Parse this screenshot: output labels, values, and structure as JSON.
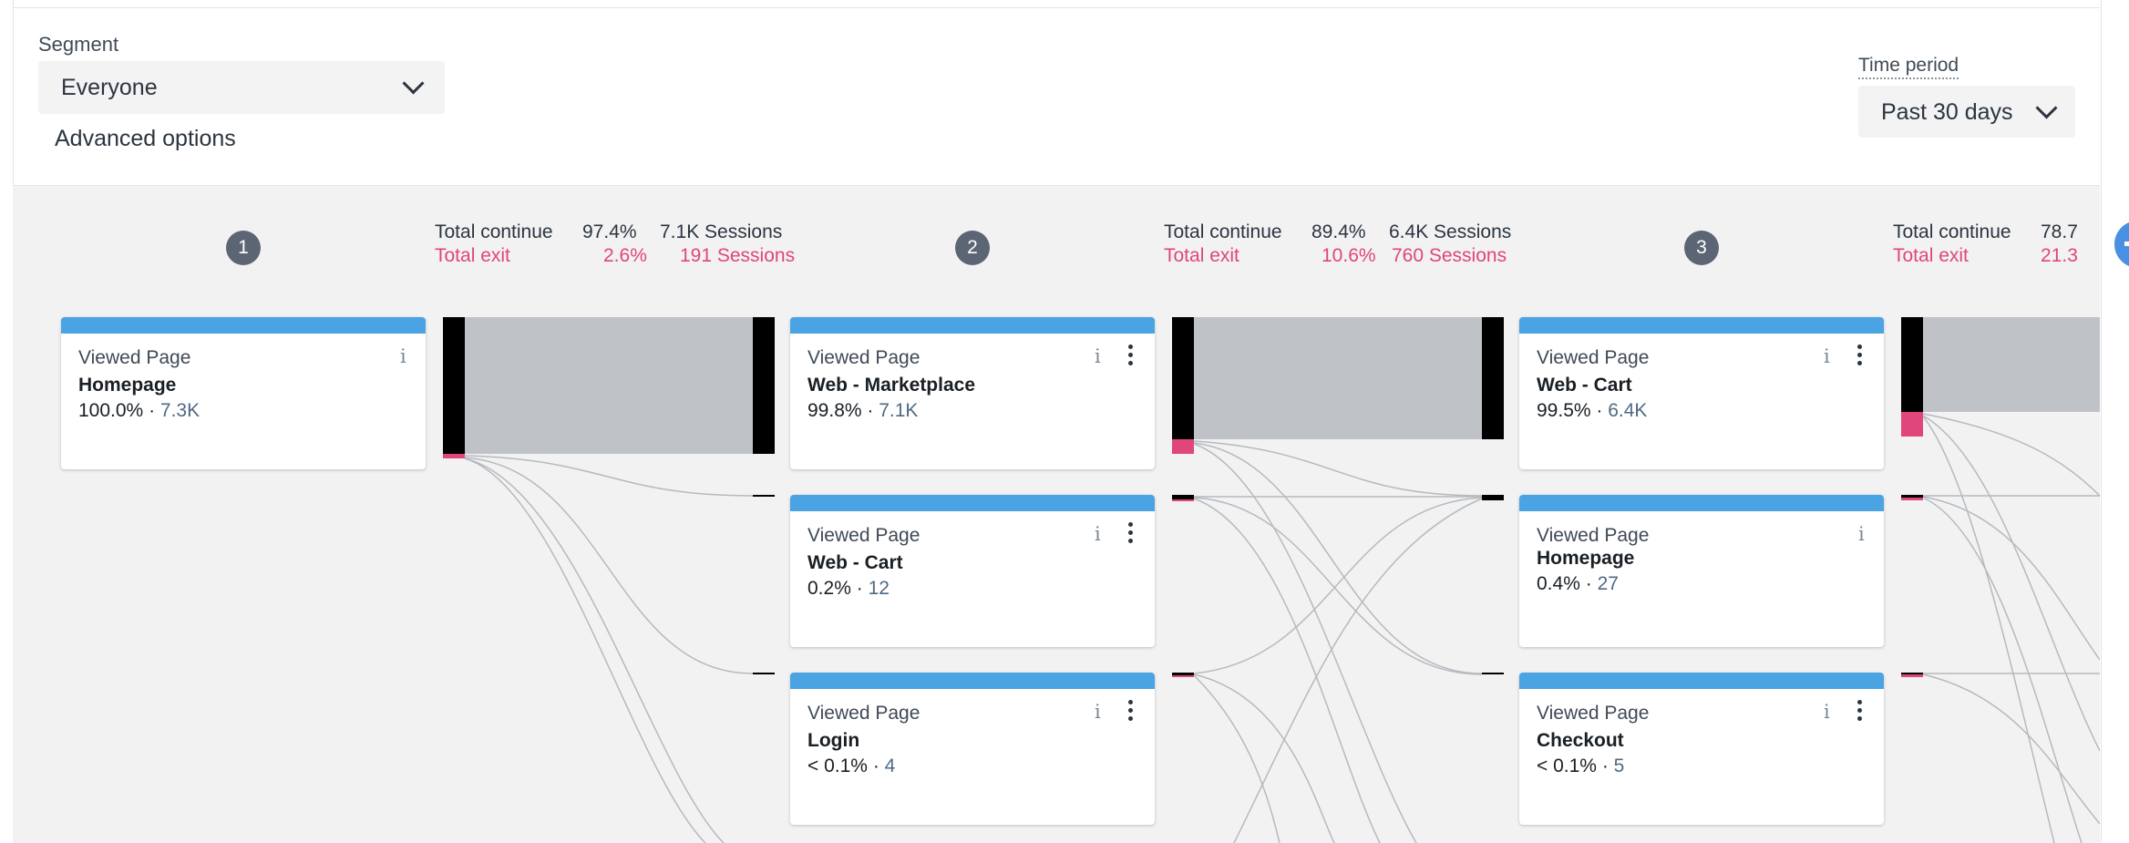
{
  "segment": {
    "label": "Segment",
    "value": "Everyone",
    "advanced": "Advanced options"
  },
  "time_period": {
    "label": "Time period",
    "value": "Past 30 days"
  },
  "steps": [
    {
      "number": "1",
      "continue_label": "Total continue",
      "continue_pct": "97.4%",
      "continue_sessions": "7.1K Sessions",
      "exit_label": "Total exit",
      "exit_pct": "2.6%",
      "exit_sessions": "191 Sessions"
    },
    {
      "number": "2",
      "continue_label": "Total continue",
      "continue_pct": "89.4%",
      "continue_sessions": "6.4K Sessions",
      "exit_label": "Total exit",
      "exit_pct": "10.6%",
      "exit_sessions": "760 Sessions"
    },
    {
      "number": "3",
      "continue_label": "Total continue",
      "continue_pct": "78.7",
      "exit_label": "Total exit",
      "exit_pct": "21.3"
    }
  ],
  "cards": [
    {
      "event": "Viewed Page",
      "name": "Homepage",
      "pct": "100.0%",
      "sep": "·",
      "count": "7.3K"
    },
    {
      "event": "Viewed Page",
      "name": "Web - Marketplace",
      "pct": "99.8%",
      "sep": "·",
      "count": "7.1K"
    },
    {
      "event": "Viewed Page",
      "name": "Web - Cart",
      "pct": "0.2%",
      "sep": "·",
      "count": "12"
    },
    {
      "event": "Viewed Page",
      "name": "Login",
      "pct": "< 0.1%",
      "sep": "·",
      "count": "4"
    },
    {
      "event": "Viewed Page",
      "name": "Web - Cart",
      "pct": "99.5%",
      "sep": "·",
      "count": "6.4K"
    },
    {
      "event": "Viewed Page",
      "name": "Homepage",
      "pct": "0.4%",
      "sep": "·",
      "count": "27"
    },
    {
      "event": "Viewed Page",
      "name": "Checkout",
      "pct": "< 0.1%",
      "sep": "·",
      "count": "5"
    }
  ],
  "icons": {
    "info": "i",
    "add_step": "plus-icon",
    "dropdown": "chevron-down-icon",
    "more": "kebab-menu-icon"
  },
  "colors": {
    "accent": "#4aa3e3",
    "exit": "#e0457b",
    "step_badge": "#5c6573",
    "add_button": "#4a90e2",
    "flow_bar": "#000000",
    "flow_band": "#bfc3c7"
  }
}
